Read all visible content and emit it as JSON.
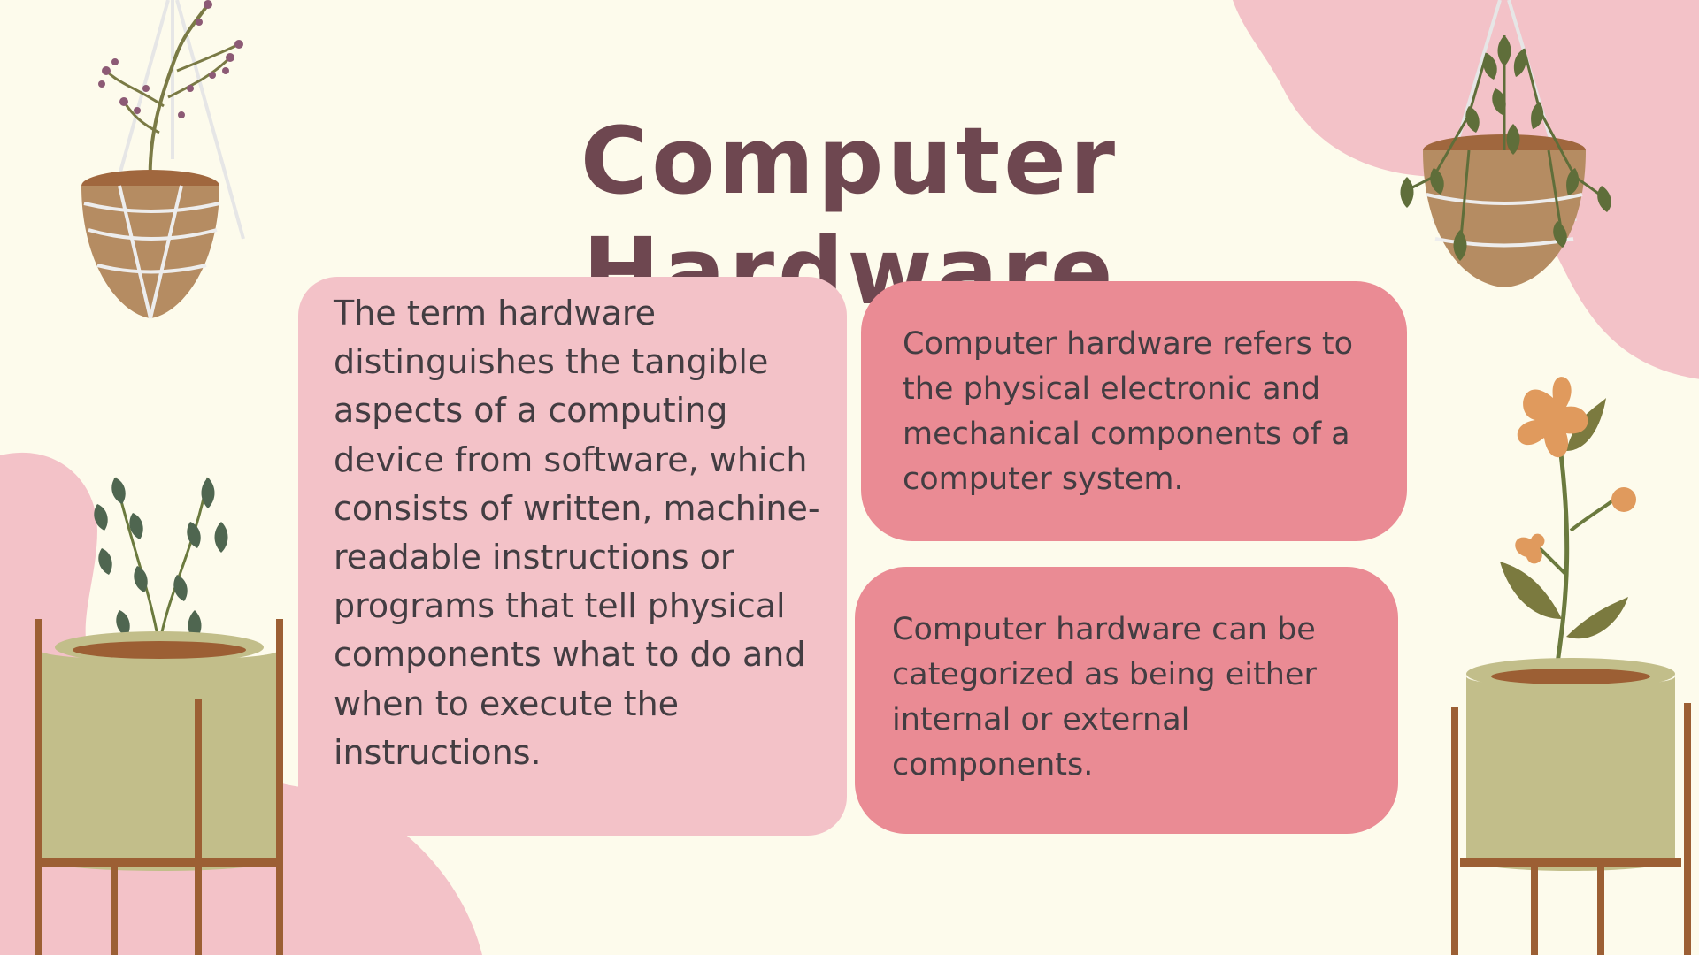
{
  "slide": {
    "title": "Computer Hardware",
    "cards": {
      "left": "The term hardware distinguishes the tangible aspects of a computing device from software, which consists of written, machine-readable instructions or programs that tell physical components what to do and when to execute the instructions.",
      "right_top": "Computer hardware refers to the physical electronic and mechanical components of a computer system.",
      "right_bottom": "Computer hardware can be categorized as being either internal or external components."
    }
  },
  "colors": {
    "background": "#fdfbec",
    "title": "#6e4750",
    "card_light": "#f3c2c8",
    "card_dark": "#ea8b94",
    "blob": "#f3c2c8"
  },
  "decorations": [
    "hanging-flower-plant-icon",
    "hanging-ivy-plant-icon",
    "potted-vine-plant-icon",
    "potted-flower-plant-icon"
  ]
}
